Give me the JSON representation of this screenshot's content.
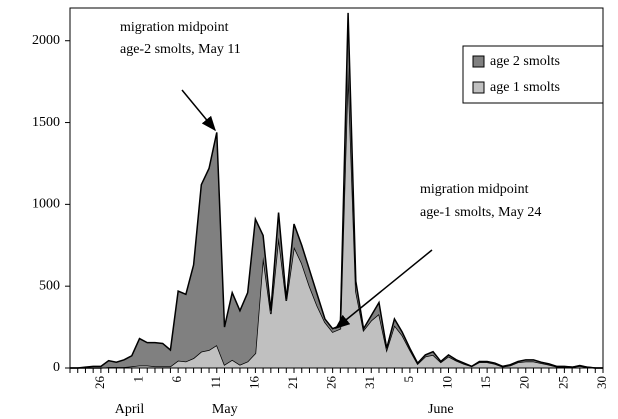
{
  "chart_data": {
    "type": "stacked_area",
    "categories": [
      null,
      null,
      null,
      null,
      "26",
      null,
      null,
      null,
      null,
      "1",
      null,
      null,
      null,
      null,
      "6",
      null,
      null,
      null,
      null,
      "11",
      null,
      null,
      null,
      null,
      "16",
      null,
      null,
      null,
      null,
      "21",
      null,
      null,
      null,
      null,
      "26",
      null,
      null,
      null,
      null,
      "31",
      null,
      null,
      null,
      null,
      "5",
      null,
      null,
      null,
      null,
      "10",
      null,
      null,
      null,
      null,
      "15",
      null,
      null,
      null,
      null,
      "20",
      null,
      null,
      null,
      null,
      "25",
      null,
      null,
      null,
      null,
      "30"
    ],
    "month_labels": [
      "April",
      "May",
      "June"
    ],
    "series": [
      {
        "name": "age 2 smolts",
        "color": "#808080",
        "values": [
          0,
          0,
          5,
          10,
          10,
          40,
          30,
          45,
          65,
          165,
          140,
          145,
          140,
          100,
          425,
          410,
          570,
          1020,
          1110,
          1300,
          230,
          410,
          330,
          420,
          820,
          130,
          20,
          150,
          10,
          140,
          110,
          100,
          70,
          20,
          20,
          20,
          330,
          60,
          10,
          30,
          70,
          10,
          40,
          20,
          10,
          5,
          10,
          20,
          5,
          10,
          5,
          5,
          0,
          5,
          5,
          5,
          2,
          5,
          5,
          10,
          10,
          5,
          5,
          2,
          2,
          0,
          3,
          1,
          0,
          0
        ]
      },
      {
        "name": "age 1 smolts",
        "color": "#c0c0c0",
        "values": [
          0,
          0,
          0,
          0,
          0,
          5,
          5,
          5,
          10,
          15,
          15,
          10,
          10,
          10,
          45,
          40,
          60,
          100,
          110,
          140,
          20,
          50,
          20,
          40,
          90,
          680,
          330,
          800,
          410,
          740,
          640,
          500,
          380,
          280,
          220,
          240,
          1840,
          470,
          230,
          290,
          330,
          110,
          260,
          200,
          110,
          25,
          70,
          80,
          35,
          70,
          45,
          25,
          10,
          35,
          35,
          25,
          8,
          15,
          35,
          40,
          40,
          30,
          20,
          8,
          8,
          5,
          12,
          4,
          0,
          0
        ]
      }
    ],
    "ylim": [
      0,
      2200
    ],
    "yticks": [
      0,
      500,
      1000,
      1500,
      2000
    ],
    "grid": false,
    "legend": "upper right",
    "annotations": [
      {
        "lines": [
          "migration midpoint",
          "age-2 smolts, May 11"
        ]
      },
      {
        "lines": [
          "migration midpoint",
          "age-1 smolts, May 24"
        ]
      }
    ]
  }
}
